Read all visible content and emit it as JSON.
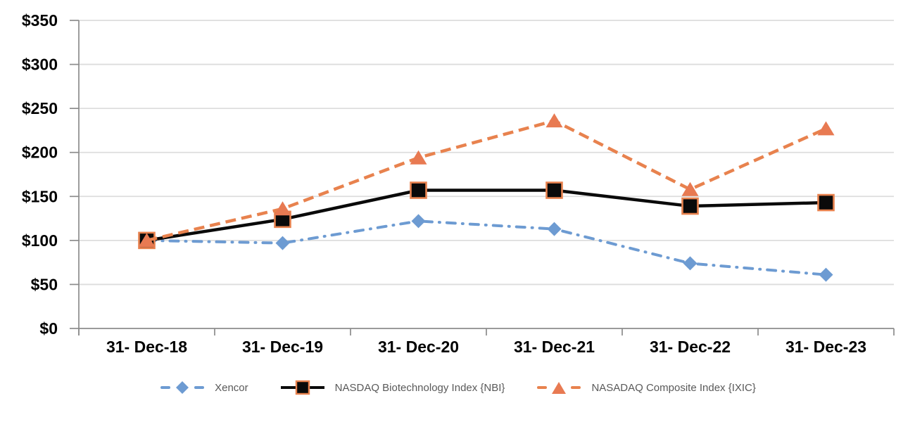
{
  "chart_data": {
    "type": "line",
    "title": "",
    "xlabel": "",
    "ylabel": "",
    "categories": [
      "31- Dec-18",
      "31- Dec-19",
      "31- Dec-20",
      "31- Dec-21",
      "31- Dec-22",
      "31- Dec-23"
    ],
    "series": [
      {
        "name": "Xencor",
        "values": [
          100,
          97,
          122,
          113,
          74,
          61
        ],
        "color": "#6D9BD2",
        "marker": "diamond",
        "marker_fill": "#6D9BD2",
        "line_style": "dash-dot"
      },
      {
        "name": "NASDAQ Biotechnology Index {NBI}",
        "values": [
          100,
          124,
          157,
          157,
          139,
          143
        ],
        "color": "#0a0a0a",
        "marker": "square",
        "marker_fill": "#0a0a0a",
        "marker_border": "#E8824E",
        "line_style": "solid"
      },
      {
        "name": "NASADAQ Composite Index {IXIC}",
        "values": [
          100,
          136,
          194,
          236,
          158,
          227
        ],
        "color": "#E8824E",
        "marker": "triangle",
        "marker_fill": "#E87A52",
        "line_style": "dashed"
      }
    ],
    "ylim": [
      0,
      350
    ],
    "ytick_step": 50,
    "ytick_prefix": "$",
    "ytick_labels": [
      "$0",
      "$50",
      "$100",
      "$150",
      "$200",
      "$250",
      "$300",
      "$350"
    ],
    "grid": true,
    "legend_position": "bottom",
    "colors": {
      "grid": "#dddddd",
      "axis": "#8c8c8c",
      "tick": "#8c8c8c",
      "axis_label": "#000000",
      "legend_text": "#595959",
      "background": "#ffffff"
    }
  }
}
